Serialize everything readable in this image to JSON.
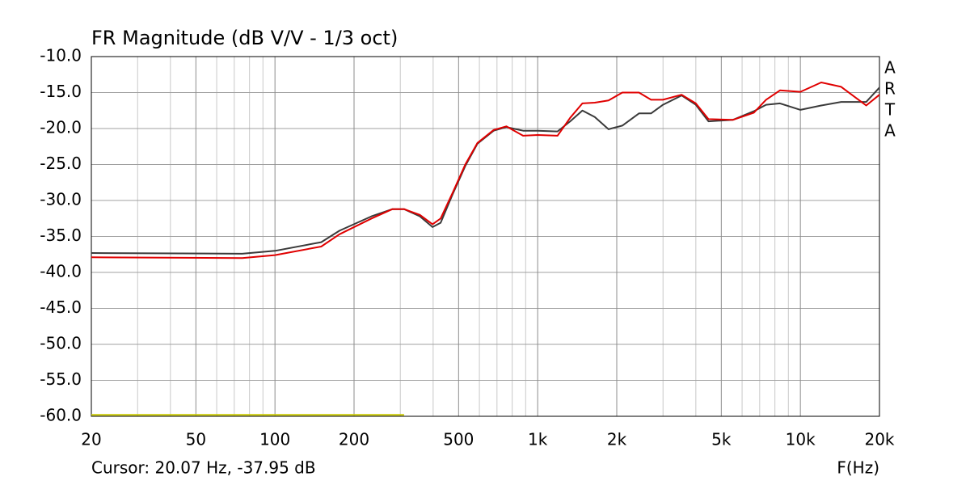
{
  "chart_data": {
    "type": "line",
    "title": "FR Magnitude (dB V/V - 1/3 oct)",
    "footer": "Cursor: 20.07 Hz, -37.95 dB",
    "xlabel": "F(Hz)",
    "logo_letters": [
      "A",
      "R",
      "T",
      "A"
    ],
    "x": [
      20,
      75,
      100,
      150,
      176,
      233,
      280,
      310,
      356,
      398,
      427,
      475,
      530,
      590,
      680,
      760,
      880,
      1000,
      1190,
      1330,
      1480,
      1650,
      1860,
      2100,
      2430,
      2700,
      3000,
      3530,
      4000,
      4470,
      5530,
      6650,
      7400,
      8360,
      10000,
      12000,
      14300,
      17800,
      20000
    ],
    "series": [
      {
        "color": "#3a3a3a",
        "values": [
          -37.3,
          -37.4,
          -37.0,
          -35.8,
          -34.2,
          -32.2,
          -31.2,
          -31.2,
          -32.2,
          -33.7,
          -33.1,
          -29.1,
          -25.2,
          -22.1,
          -20.3,
          -19.8,
          -20.3,
          -20.3,
          -20.4,
          -19.0,
          -17.5,
          -18.4,
          -20.1,
          -19.6,
          -17.9,
          -17.9,
          -16.7,
          -15.4,
          -16.7,
          -19.0,
          -18.8,
          -17.6,
          -16.7,
          -16.5,
          -17.4,
          -16.8,
          -16.3,
          -16.3,
          -14.3
        ]
      },
      {
        "color": "#e00000",
        "values": [
          -37.9,
          -38.0,
          -37.6,
          -36.4,
          -34.7,
          -32.5,
          -31.2,
          -31.2,
          -32.0,
          -33.3,
          -32.5,
          -28.9,
          -25.0,
          -22.0,
          -20.2,
          -19.7,
          -21.0,
          -20.9,
          -21.0,
          -18.5,
          -16.5,
          -16.4,
          -16.1,
          -15.0,
          -15.0,
          -16.0,
          -16.0,
          -15.3,
          -16.5,
          -18.7,
          -18.8,
          -17.8,
          -16.0,
          -14.7,
          -14.9,
          -13.6,
          -14.2,
          -16.8,
          -15.3
        ]
      }
    ],
    "noise_floor": {
      "color": "#c8c800",
      "x": [
        20,
        310
      ],
      "values": [
        -59.8,
        -59.8
      ]
    },
    "log_x": true,
    "xlim": [
      20,
      20000
    ],
    "ylim": [
      -60,
      -10
    ],
    "xticks": [
      20,
      50,
      100,
      200,
      500,
      {
        "value": 1000,
        "label": "1k"
      },
      {
        "value": 2000,
        "label": "2k"
      },
      {
        "value": 5000,
        "label": "5k"
      },
      {
        "value": 10000,
        "label": "10k"
      },
      {
        "value": 20000,
        "label": "20k"
      }
    ],
    "x_minor_grid": [
      30,
      40,
      60,
      70,
      80,
      90,
      300,
      400,
      600,
      700,
      800,
      900,
      3000,
      4000,
      6000,
      7000,
      8000,
      9000
    ],
    "yticks": [
      {
        "value": -10,
        "label": "-10.0"
      },
      {
        "value": -15,
        "label": "-15.0"
      },
      {
        "value": -20,
        "label": "-20.0"
      },
      {
        "value": -25,
        "label": "-25.0"
      },
      {
        "value": -30,
        "label": "-30.0"
      },
      {
        "value": -35,
        "label": "-35.0"
      },
      {
        "value": -40,
        "label": "-40.0"
      },
      {
        "value": -45,
        "label": "-45.0"
      },
      {
        "value": -50,
        "label": "-50.0"
      },
      {
        "value": -55,
        "label": "-55.0"
      },
      {
        "value": -60,
        "label": "-60.0"
      }
    ],
    "grid": true
  }
}
